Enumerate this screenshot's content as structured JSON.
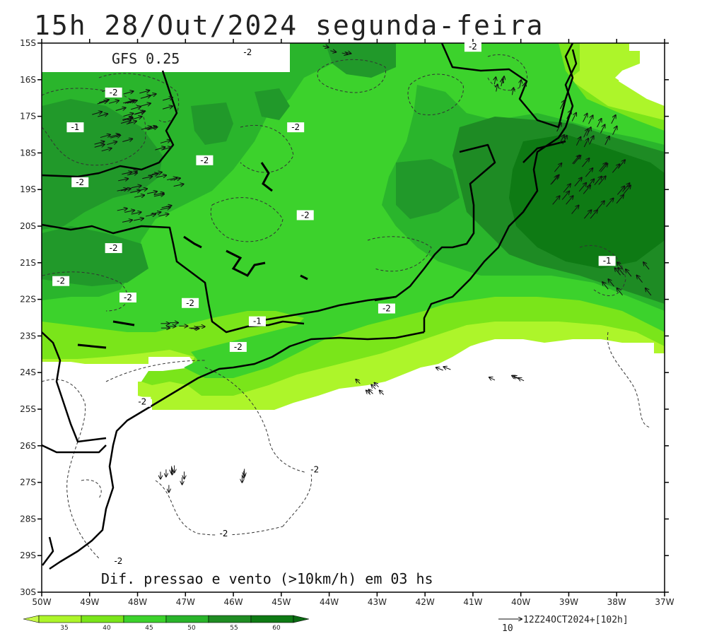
{
  "header": {
    "title": "15h 28/Out/2024 segunda-feira",
    "model": "GFS 0.25"
  },
  "caption": "Dif. pressao e vento (>10km/h) em 03 hs",
  "axes": {
    "lat_labels": [
      "15S",
      "16S",
      "17S",
      "18S",
      "19S",
      "20S",
      "21S",
      "22S",
      "23S",
      "24S",
      "25S",
      "26S",
      "27S",
      "28S",
      "29S",
      "30S"
    ],
    "lon_labels": [
      "50W",
      "49W",
      "48W",
      "47W",
      "46W",
      "45W",
      "44W",
      "43W",
      "42W",
      "41W",
      "40W",
      "39W",
      "38W",
      "37W"
    ]
  },
  "contour_labels": [
    {
      "text": "-2",
      "lon": -45.7,
      "lat": -15.25
    },
    {
      "text": "-2",
      "lon": -41.0,
      "lat": -15.1
    },
    {
      "text": "-2",
      "lon": -48.5,
      "lat": -16.35
    },
    {
      "text": "-1",
      "lon": -49.3,
      "lat": -17.3
    },
    {
      "text": "-2",
      "lon": -44.7,
      "lat": -17.3
    },
    {
      "text": "-2",
      "lon": -46.6,
      "lat": -18.2
    },
    {
      "text": "-2",
      "lon": -49.2,
      "lat": -18.8
    },
    {
      "text": "-2",
      "lon": -44.5,
      "lat": -19.7
    },
    {
      "text": "-2",
      "lon": -48.5,
      "lat": -20.6
    },
    {
      "text": "-1",
      "lon": -38.2,
      "lat": -20.95
    },
    {
      "text": "-2",
      "lon": -49.6,
      "lat": -21.5
    },
    {
      "text": "-2",
      "lon": -48.2,
      "lat": -21.95
    },
    {
      "text": "-2",
      "lon": -46.9,
      "lat": -22.1
    },
    {
      "text": "-1",
      "lon": -45.5,
      "lat": -22.6
    },
    {
      "text": "-2",
      "lon": -42.8,
      "lat": -22.25
    },
    {
      "text": "-2",
      "lon": -45.9,
      "lat": -23.3
    },
    {
      "text": "-2",
      "lon": -47.9,
      "lat": -24.8
    },
    {
      "text": "-2",
      "lon": -44.3,
      "lat": -26.65
    },
    {
      "text": "-2",
      "lon": -46.2,
      "lat": -28.4
    },
    {
      "text": "-2",
      "lon": -48.4,
      "lat": -29.15
    }
  ],
  "legend": {
    "ticks": [
      "35",
      "40",
      "45",
      "50",
      "55",
      "60"
    ],
    "colors": [
      "#adf52a",
      "#7ae51a",
      "#3cd22c",
      "#29b42a",
      "#1f8c22",
      "#0e7a14"
    ]
  },
  "reference": {
    "vector_label": "10",
    "run_label": "12Z24OCT2024+[102h]"
  }
}
